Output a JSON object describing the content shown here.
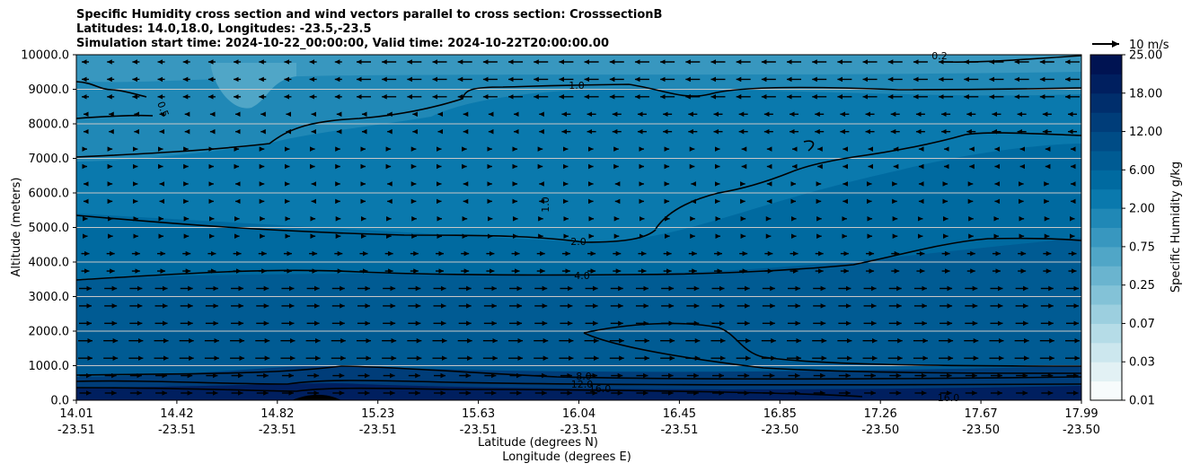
{
  "chart_data": {
    "type": "heatmap",
    "title_lines": [
      "Specific Humidity cross section and wind vectors parallel to cross section: CrosssectionB",
      "Latitudes: 14.0,18.0, Longitudes: -23.5,-23.5",
      "Simulation start time: 2024-10-22_00:00:00, Valid time: 2024-10-22T20:00:00.00"
    ],
    "ylabel": "Altitude (meters)",
    "xlabel_lat": "Latitude (degrees N)",
    "xlabel_lon": "Longitude (degrees E)",
    "ylim": [
      0,
      10000
    ],
    "y_ticks": [
      "0.0",
      "1000.0",
      "2000.0",
      "3000.0",
      "4000.0",
      "5000.0",
      "6000.0",
      "7000.0",
      "8000.0",
      "9000.0",
      "10000.0"
    ],
    "x_ticks_lat": [
      "14.01",
      "14.42",
      "14.82",
      "15.23",
      "15.63",
      "16.04",
      "16.45",
      "16.85",
      "17.26",
      "17.67",
      "17.99"
    ],
    "x_ticks_lon": [
      "-23.51",
      "-23.51",
      "-23.51",
      "-23.51",
      "-23.51",
      "-23.51",
      "-23.51",
      "-23.50",
      "-23.50",
      "-23.50",
      "-23.50"
    ],
    "grid": "horizontal",
    "colorbar": {
      "label": "Specific Humidity g/kg",
      "tick_labels": [
        "0.01",
        "0.03",
        "0.07",
        "0.25",
        "0.75",
        "2.00",
        "6.00",
        "12.00",
        "18.00",
        "25.00"
      ],
      "colors": [
        "#f7fbfc",
        "#e2f1f4",
        "#cce7ee",
        "#b5dce7",
        "#9ccfdf",
        "#83c2d7",
        "#6ab4cf",
        "#50a6c7",
        "#3897bf",
        "#2088b6",
        "#0a79ad",
        "#006aa0",
        "#005b93",
        "#004c86",
        "#003d79",
        "#002e6c",
        "#001f5f",
        "#001352"
      ]
    },
    "contour_labels": [
      "0.5",
      "1.0",
      "2.0",
      "4.0",
      "8.0",
      "12.0",
      "16.0",
      "0.2"
    ],
    "wind_key": "10 m/s"
  }
}
